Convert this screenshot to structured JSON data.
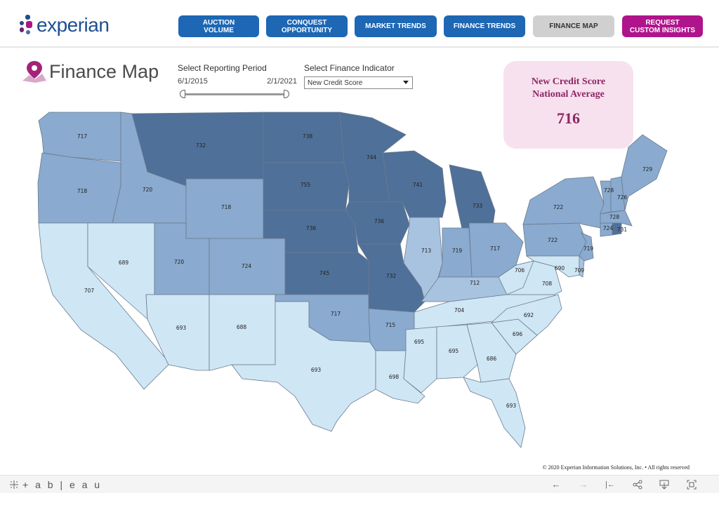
{
  "brand": {
    "name": "experian",
    "dot_colors": [
      "#1d4f91",
      "#26478d",
      "#af1685",
      "#6d2077",
      "#426da9"
    ]
  },
  "nav": [
    {
      "label": "AUCTION VOLUME",
      "line1": "AUCTION",
      "line2": "VOLUME",
      "color": "#1d67b4"
    },
    {
      "label": "CONQUEST OPPORTUNITY",
      "line1": "CONQUEST",
      "line2": "OPPORTUNITY",
      "color": "#1d67b4"
    },
    {
      "label": "MARKET TRENDS",
      "line1": "MARKET TRENDS",
      "line2": "",
      "color": "#1d67b4"
    },
    {
      "label": "FINANCE TRENDS",
      "line1": "FINANCE TRENDS",
      "line2": "",
      "color": "#1d67b4"
    },
    {
      "label": "FINANCE MAP",
      "line1": "FINANCE MAP",
      "line2": "",
      "color": "#d0d0d0",
      "active": true
    },
    {
      "label": "REQUEST CUSTOM INSIGHTS",
      "line1": "REQUEST",
      "line2": "CUSTOM INSIGHTS",
      "color": "#b0148c"
    }
  ],
  "page_title": "Finance Map",
  "pin_icon": "location-pin-icon",
  "period": {
    "label": "Select Reporting Period",
    "start": "6/1/2015",
    "end": "2/1/2021"
  },
  "indicator": {
    "label": "Select Finance Indicator",
    "value": "New Credit Score"
  },
  "kpi": {
    "line1": "New Credit Score",
    "line2": "National Average",
    "value": "716",
    "accent": "#8e2665"
  },
  "map": {
    "color_scale": {
      "low": "#cfe6f5",
      "mid": "#8fb0d3",
      "high": "#4e6f97"
    },
    "states": [
      {
        "code": "WA",
        "value": "717"
      },
      {
        "code": "OR",
        "value": "718"
      },
      {
        "code": "CA",
        "value": "707"
      },
      {
        "code": "ID",
        "value": "720"
      },
      {
        "code": "NV",
        "value": "689"
      },
      {
        "code": "MT",
        "value": "732"
      },
      {
        "code": "WY",
        "value": "718"
      },
      {
        "code": "UT",
        "value": "720"
      },
      {
        "code": "AZ",
        "value": "693"
      },
      {
        "code": "CO",
        "value": "724"
      },
      {
        "code": "NM",
        "value": "688"
      },
      {
        "code": "ND",
        "value": "738"
      },
      {
        "code": "SD",
        "value": "755"
      },
      {
        "code": "NE",
        "value": "736"
      },
      {
        "code": "KS",
        "value": "745"
      },
      {
        "code": "OK",
        "value": "717"
      },
      {
        "code": "TX",
        "value": "693"
      },
      {
        "code": "MN",
        "value": "744"
      },
      {
        "code": "IA",
        "value": "736"
      },
      {
        "code": "MO",
        "value": "732"
      },
      {
        "code": "AR",
        "value": "715"
      },
      {
        "code": "LA",
        "value": "698"
      },
      {
        "code": "WI",
        "value": "741"
      },
      {
        "code": "IL",
        "value": "713"
      },
      {
        "code": "MI",
        "value": "733"
      },
      {
        "code": "IN",
        "value": "719"
      },
      {
        "code": "OH",
        "value": "717"
      },
      {
        "code": "KY",
        "value": "712"
      },
      {
        "code": "TN",
        "value": "704"
      },
      {
        "code": "MS",
        "value": "695"
      },
      {
        "code": "AL",
        "value": "695"
      },
      {
        "code": "GA",
        "value": "686"
      },
      {
        "code": "FL",
        "value": "693"
      },
      {
        "code": "SC",
        "value": "696"
      },
      {
        "code": "NC",
        "value": "692"
      },
      {
        "code": "VA",
        "value": "708"
      },
      {
        "code": "WV",
        "value": "706"
      },
      {
        "code": "PA",
        "value": "722"
      },
      {
        "code": "NY",
        "value": "722"
      },
      {
        "code": "NJ",
        "value": "719"
      },
      {
        "code": "MD",
        "value": "690"
      },
      {
        "code": "DE",
        "value": "709"
      },
      {
        "code": "CT",
        "value": "724"
      },
      {
        "code": "RI",
        "value": "731"
      },
      {
        "code": "MA",
        "value": "728"
      },
      {
        "code": "VT",
        "value": "728"
      },
      {
        "code": "NH",
        "value": "726"
      },
      {
        "code": "ME",
        "value": "729"
      }
    ]
  },
  "copyright": "© 2020 Experian Information Solutions, Inc. • All rights reserved",
  "toolbar": {
    "logo": "+ a b | e a u",
    "icons": [
      "undo-icon",
      "redo-icon",
      "revert-icon",
      "share-icon",
      "download-icon",
      "fullscreen-icon"
    ],
    "glyphs": [
      "←",
      "→",
      "|←",
      "⋖",
      "⤓",
      "⛶"
    ]
  }
}
